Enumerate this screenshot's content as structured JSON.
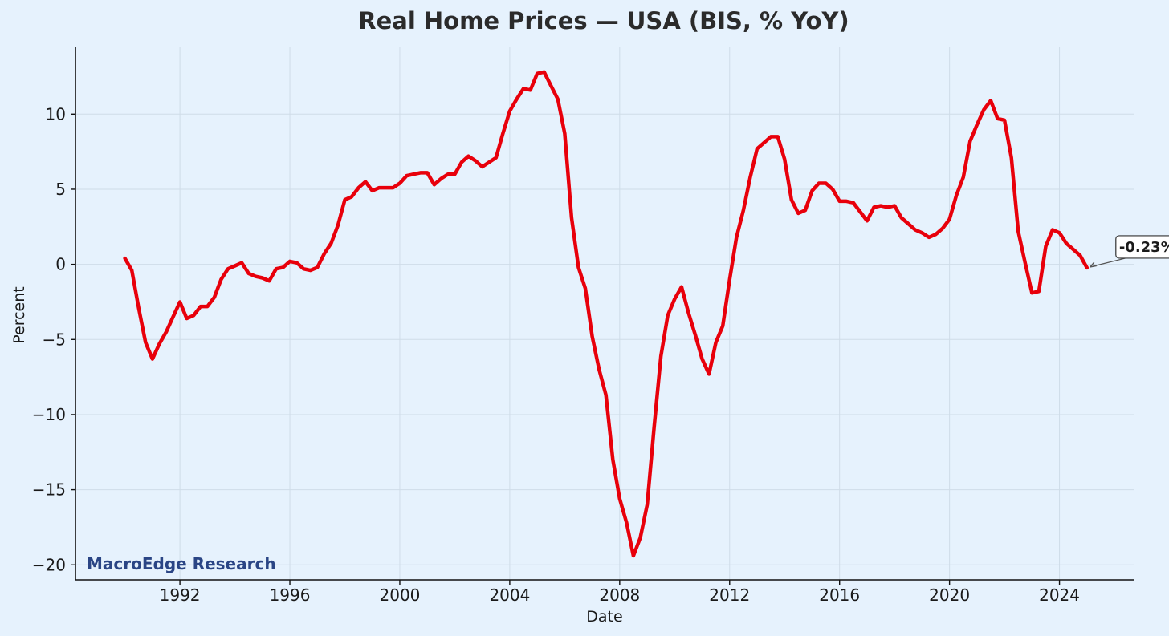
{
  "chart_data": {
    "type": "line",
    "title": "Real Home Prices — USA (BIS, % YoY)",
    "xlabel": "Date",
    "ylabel": "Percent",
    "xlim": [
      1988.2,
      2026.7
    ],
    "ylim": [
      -21,
      14.5
    ],
    "x_ticks": [
      1992,
      1996,
      2000,
      2004,
      2008,
      2012,
      2016,
      2020,
      2024
    ],
    "y_ticks": [
      10,
      5,
      0,
      -5,
      -10,
      -15,
      -20
    ],
    "y_tick_labels": [
      "10",
      "5",
      "0",
      "−5",
      "−10",
      "−15",
      "−20"
    ],
    "grid": true,
    "colors": {
      "line": "#e8000b",
      "background": "#e6f2fd",
      "grid": "#cfdce8",
      "axis": "#111111",
      "watermark": "#2a4585"
    },
    "series": [
      {
        "x": [
          1990.0,
          1990.25,
          1990.5,
          1990.75,
          1991.0,
          1991.25,
          1991.5,
          1991.75,
          1992.0,
          1992.25,
          1992.5,
          1992.75,
          1993.0,
          1993.25,
          1993.5,
          1993.75,
          1994.0,
          1994.25,
          1994.5,
          1994.75,
          1995.0,
          1995.25,
          1995.5,
          1995.75,
          1996.0,
          1996.25,
          1996.5,
          1996.75,
          1997.0,
          1997.25,
          1997.5,
          1997.75,
          1998.0,
          1998.25,
          1998.5,
          1998.75,
          1999.0,
          1999.25,
          1999.5,
          1999.75,
          2000.0,
          2000.25,
          2000.5,
          2000.75,
          2001.0,
          2001.25,
          2001.5,
          2001.75,
          2002.0,
          2002.25,
          2002.5,
          2002.75,
          2003.0,
          2003.25,
          2003.5,
          2003.75,
          2004.0,
          2004.25,
          2004.5,
          2004.75,
          2005.0,
          2005.25,
          2005.5,
          2005.75,
          2006.0,
          2006.25,
          2006.5,
          2006.75,
          2007.0,
          2007.25,
          2007.5,
          2007.75,
          2008.0,
          2008.25,
          2008.5,
          2008.75,
          2009.0,
          2009.25,
          2009.5,
          2009.75,
          2010.0,
          2010.25,
          2010.5,
          2010.75,
          2011.0,
          2011.25,
          2011.5,
          2011.75,
          2012.0,
          2012.25,
          2012.5,
          2012.75,
          2013.0,
          2013.25,
          2013.5,
          2013.75,
          2014.0,
          2014.25,
          2014.5,
          2014.75,
          2015.0,
          2015.25,
          2015.5,
          2015.75,
          2016.0,
          2016.25,
          2016.5,
          2016.75,
          2017.0,
          2017.25,
          2017.5,
          2017.75,
          2018.0,
          2018.25,
          2018.5,
          2018.75,
          2019.0,
          2019.25,
          2019.5,
          2019.75,
          2020.0,
          2020.25,
          2020.5,
          2020.75,
          2021.0,
          2021.25,
          2021.5,
          2021.75,
          2022.0,
          2022.25,
          2022.5,
          2022.75,
          2023.0,
          2023.25,
          2023.5,
          2023.75,
          2024.0,
          2024.25,
          2024.5,
          2024.75,
          2025.0
        ],
        "y": [
          0.4,
          -0.4,
          -2.9,
          -5.2,
          -6.3,
          -5.3,
          -4.5,
          -3.5,
          -2.5,
          -3.6,
          -3.4,
          -2.8,
          -2.8,
          -2.2,
          -1.0,
          -0.3,
          -0.1,
          0.1,
          -0.6,
          -0.8,
          -0.9,
          -1.1,
          -0.3,
          -0.2,
          0.2,
          0.1,
          -0.3,
          -0.4,
          -0.2,
          0.7,
          1.4,
          2.6,
          4.3,
          4.5,
          5.1,
          5.5,
          4.9,
          5.1,
          5.1,
          5.1,
          5.4,
          5.9,
          6.0,
          6.1,
          6.1,
          5.3,
          5.7,
          6.0,
          6.0,
          6.8,
          7.2,
          6.9,
          6.5,
          6.8,
          7.1,
          8.7,
          10.2,
          11.0,
          11.7,
          11.6,
          12.7,
          12.8,
          11.9,
          11.0,
          8.7,
          3.1,
          -0.2,
          -1.6,
          -4.8,
          -7.0,
          -8.7,
          -13.0,
          -15.6,
          -17.2,
          -19.4,
          -18.2,
          -16.0,
          -10.9,
          -6.1,
          -3.4,
          -2.3,
          -1.5,
          -3.2,
          -4.7,
          -6.3,
          -7.3,
          -5.2,
          -4.1,
          -1.0,
          1.8,
          3.6,
          5.8,
          7.7,
          8.1,
          8.5,
          8.5,
          7.0,
          4.3,
          3.4,
          3.6,
          4.9,
          5.4,
          5.4,
          5.0,
          4.2,
          4.2,
          4.1,
          3.5,
          2.9,
          3.8,
          3.9,
          3.8,
          3.9,
          3.1,
          2.7,
          2.3,
          2.1,
          1.8,
          2.0,
          2.4,
          3.0,
          4.6,
          5.8,
          8.2,
          9.3,
          10.3,
          10.9,
          9.7,
          9.6,
          7.1,
          2.2,
          0.1,
          -1.9,
          -1.8,
          1.2,
          2.3,
          2.1,
          1.4,
          1.0,
          0.6,
          -0.23
        ]
      }
    ],
    "annotation": {
      "text": "-0.23%",
      "x": 2025.0,
      "y": -0.23
    },
    "watermark": "MacroEdge Research"
  }
}
